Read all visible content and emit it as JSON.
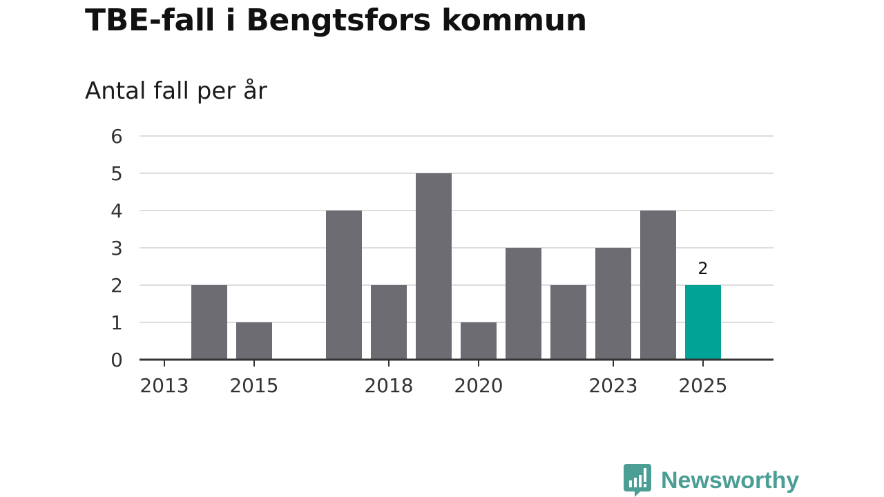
{
  "title": "TBE-fall i Bengtsfors kommun",
  "subtitle": "Antal fall per år",
  "brand": {
    "name": "Newsworthy",
    "color": "#4a9e94"
  },
  "colors": {
    "bar": "#6d6c72",
    "highlight": "#00a396",
    "grid": "#dddddd",
    "axis": "#333333"
  },
  "chart_data": {
    "type": "bar",
    "title": "TBE-fall i Bengtsfors kommun",
    "ylabel": "Antal fall per år",
    "xlabel": "",
    "categories": [
      "2013",
      "2014",
      "2015",
      "2016",
      "2017",
      "2018",
      "2019",
      "2020",
      "2021",
      "2022",
      "2023",
      "2024",
      "2025"
    ],
    "values": [
      0,
      2,
      1,
      0,
      4,
      2,
      5,
      1,
      3,
      2,
      3,
      4,
      2
    ],
    "x_tick_labels": [
      "2013",
      "2015",
      "2018",
      "2020",
      "2023",
      "2025"
    ],
    "y_ticks": [
      0,
      1,
      2,
      3,
      4,
      5,
      6
    ],
    "ylim": [
      0,
      6
    ],
    "grid": true,
    "highlight_category": "2025",
    "data_labels": [
      {
        "category": "2025",
        "text": "2"
      }
    ]
  }
}
